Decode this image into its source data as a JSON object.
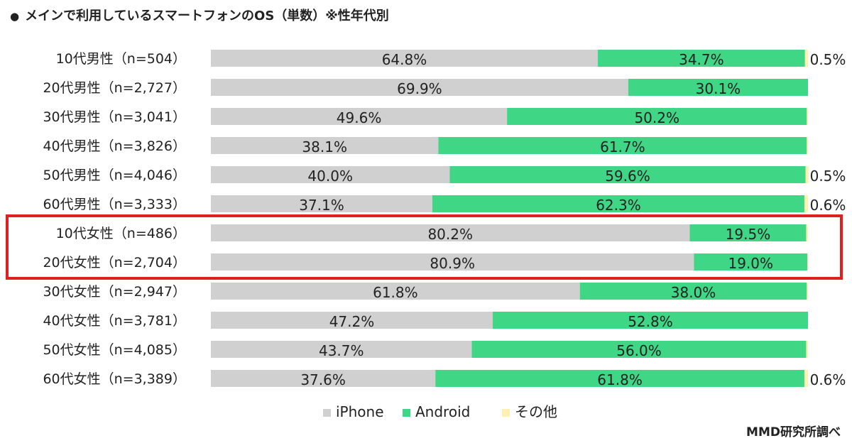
{
  "title": "メインで利用しているスマートフォンのOS（単数）※性年代別",
  "title_bullet": "●",
  "source_note": "MMD研究所調べ",
  "colors": {
    "iphone": "#d0d0d0",
    "android": "#3fd686",
    "other": "#fff2b0",
    "highlight": "#e02020"
  },
  "chart_data": {
    "type": "bar",
    "orientation": "horizontal",
    "stacked": "100%",
    "legend_position": "bottom",
    "categories": [
      "10代男性（n=504）",
      "20代男性（n=2,727）",
      "30代男性（n=3,041）",
      "40代男性（n=3,826）",
      "50代男性（n=4,046）",
      "60代男性（n=3,333）",
      "10代女性（n=486）",
      "20代女性（n=2,704）",
      "30代女性（n=2,947）",
      "40代女性（n=3,781）",
      "50代女性（n=4,085）",
      "60代女性（n=3,389）"
    ],
    "series": [
      {
        "name": "iPhone",
        "values": [
          64.8,
          69.9,
          49.6,
          38.1,
          40.0,
          37.1,
          80.2,
          80.9,
          61.8,
          47.2,
          43.7,
          37.6
        ]
      },
      {
        "name": "Android",
        "values": [
          34.7,
          30.1,
          50.2,
          61.7,
          59.6,
          62.3,
          19.5,
          19.0,
          38.0,
          52.8,
          56.0,
          61.8
        ]
      },
      {
        "name": "その他",
        "values": [
          0.5,
          0.0,
          0.2,
          0.2,
          0.5,
          0.6,
          0.3,
          0.1,
          0.2,
          0.0,
          0.3,
          0.6
        ]
      }
    ],
    "bar_labels": {
      "iPhone": [
        "64.8%",
        "69.9%",
        "49.6%",
        "38.1%",
        "40.0%",
        "37.1%",
        "80.2%",
        "80.9%",
        "61.8%",
        "47.2%",
        "43.7%",
        "37.6%"
      ],
      "Android": [
        "34.7%",
        "30.1%",
        "50.2%",
        "61.7%",
        "59.6%",
        "62.3%",
        "19.5%",
        "19.0%",
        "38.0%",
        "52.8%",
        "56.0%",
        "61.8%"
      ],
      "その他": [
        "0.5%",
        "",
        "",
        "",
        "0.5%",
        "0.6%",
        "",
        "",
        "",
        "",
        "",
        "0.6%"
      ]
    },
    "highlighted_categories": [
      "10代女性（n=486）",
      "20代女性（n=2,704）"
    ]
  }
}
